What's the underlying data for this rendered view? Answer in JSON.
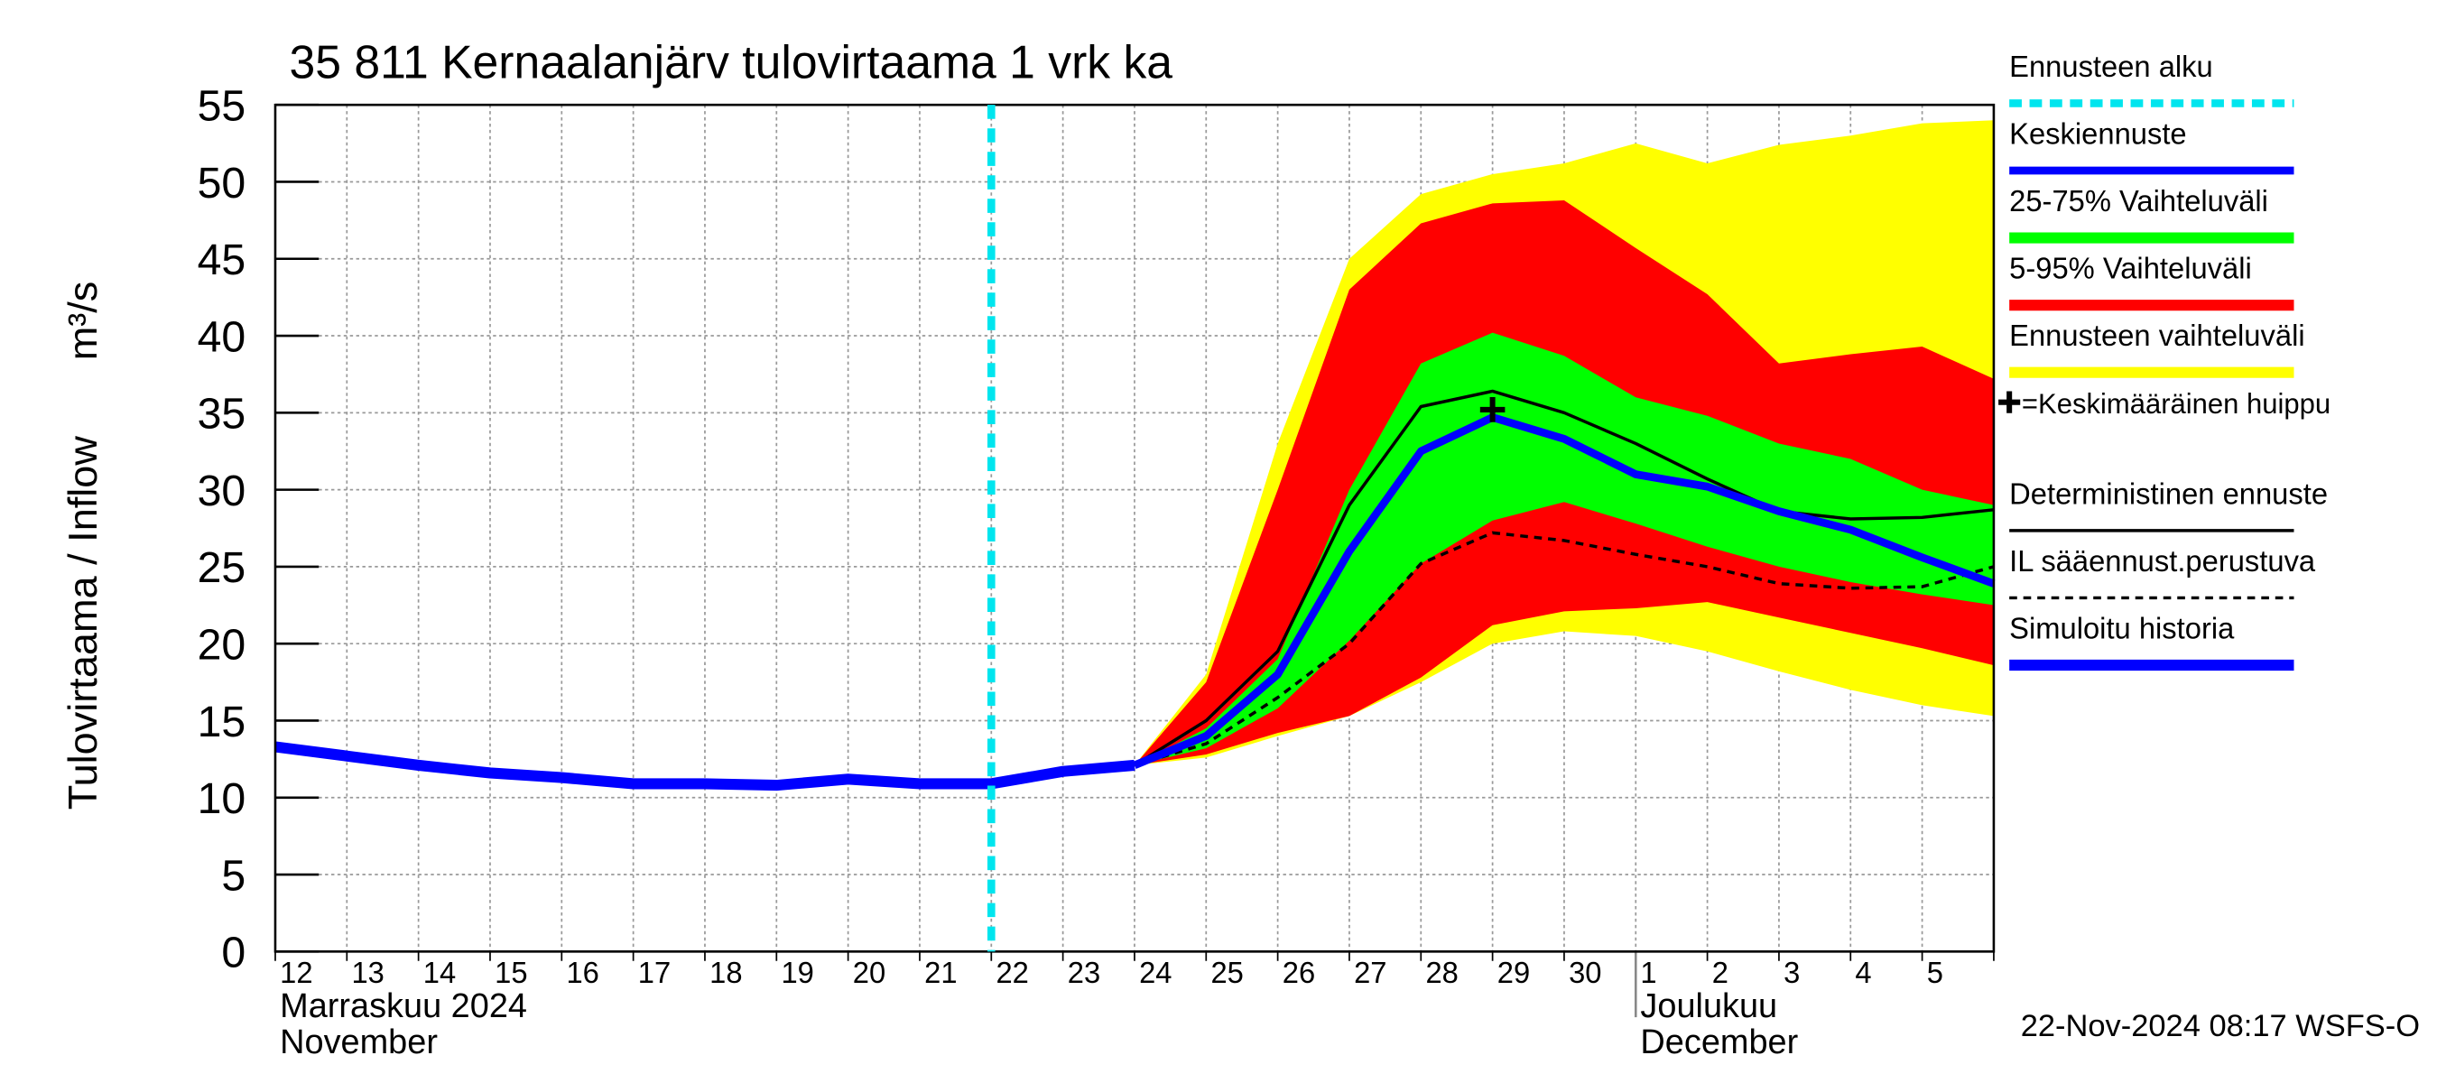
{
  "chart_data": {
    "type": "line",
    "title": "35 811 Kernaalanjärv tulovirtaama 1 vrk ka",
    "y_label": "Tulovirtaama / Inflow",
    "y_unit": "m³/s",
    "categories": [
      "12",
      "13",
      "14",
      "15",
      "16",
      "17",
      "18",
      "19",
      "20",
      "21",
      "22",
      "23",
      "24",
      "25",
      "26",
      "27",
      "28",
      "29",
      "30",
      "1",
      "2",
      "3",
      "4",
      "5",
      null
    ],
    "month_labels": [
      {
        "category": "12",
        "lines": [
          "Marraskuu 2024",
          "November"
        ]
      },
      {
        "category": "1",
        "lines": [
          "Joulukuu",
          "December"
        ]
      }
    ],
    "ylim": [
      0,
      55
    ],
    "yticks": [
      0,
      5,
      10,
      15,
      20,
      25,
      30,
      35,
      40,
      45,
      50,
      55
    ],
    "grid": true,
    "forecast_start": {
      "name": "Ennusteen alku",
      "category": "22",
      "color": "#00e5ee"
    },
    "series": [
      {
        "name": "Ennusteen vaihteluväli",
        "kind": "band",
        "color": "#ffff00",
        "values": [
          null,
          null,
          null,
          null,
          null,
          null,
          null,
          null,
          null,
          null,
          null,
          null,
          12.1,
          18,
          33,
          45,
          49.2,
          50.5,
          51.2,
          52.5,
          51.2,
          52.4,
          53,
          53.8,
          54
        ],
        "lower": [
          null,
          null,
          null,
          null,
          null,
          null,
          null,
          null,
          null,
          null,
          null,
          null,
          12.1,
          12.6,
          14,
          15.3,
          17.5,
          20,
          20.8,
          20.5,
          19.5,
          18.2,
          17,
          16,
          15.3
        ]
      },
      {
        "name": "5-95% Vaihteluväli",
        "kind": "band",
        "color": "#ff0000",
        "values": [
          null,
          null,
          null,
          null,
          null,
          null,
          null,
          null,
          null,
          null,
          null,
          null,
          12.1,
          17.5,
          30,
          43,
          47.3,
          48.6,
          48.8,
          45.7,
          42.7,
          38.2,
          38.8,
          39.3,
          37.2
        ],
        "lower": [
          null,
          null,
          null,
          null,
          null,
          null,
          null,
          null,
          null,
          null,
          null,
          null,
          12.1,
          12.8,
          14.2,
          15.3,
          17.8,
          21.2,
          22.1,
          22.3,
          22.7,
          21.7,
          20.7,
          19.7,
          18.6
        ]
      },
      {
        "name": "25-75% Vaihteluväli",
        "kind": "band",
        "color": "#00ff00",
        "values": [
          null,
          null,
          null,
          null,
          null,
          null,
          null,
          null,
          null,
          null,
          null,
          null,
          12.1,
          14.5,
          19,
          30,
          38.2,
          40.2,
          38.7,
          36,
          34.8,
          33,
          32,
          30,
          29
        ],
        "lower": [
          null,
          null,
          null,
          null,
          null,
          null,
          null,
          null,
          null,
          null,
          null,
          null,
          12.1,
          13.2,
          15.8,
          20.2,
          25.2,
          28,
          29.2,
          27.8,
          26.3,
          25,
          24,
          23.2,
          22.5
        ]
      },
      {
        "name": "IL sääennust.perustuva",
        "kind": "line",
        "color": "#000000",
        "dash": true,
        "width": 2,
        "values": [
          null,
          null,
          null,
          null,
          null,
          null,
          null,
          null,
          null,
          null,
          null,
          null,
          12.1,
          13.5,
          16.5,
          20,
          25.2,
          27.2,
          26.7,
          25.8,
          25,
          23.9,
          23.6,
          23.7,
          25
        ]
      },
      {
        "name": "Deterministinen ennuste",
        "kind": "line",
        "color": "#000000",
        "width": 2,
        "values": [
          null,
          null,
          null,
          null,
          null,
          null,
          null,
          null,
          null,
          null,
          null,
          null,
          12.1,
          15,
          19.5,
          29,
          35.4,
          36.4,
          35,
          33,
          30.7,
          28.6,
          28.1,
          28.2,
          28.7
        ]
      },
      {
        "name": "Keskiennuste",
        "kind": "line",
        "color": "#0000ff",
        "width": 5,
        "values": [
          null,
          null,
          null,
          null,
          null,
          null,
          null,
          null,
          null,
          null,
          null,
          null,
          12.1,
          14,
          18,
          26,
          32.5,
          34.7,
          33.3,
          31,
          30.2,
          28.6,
          27.4,
          25.6,
          23.9
        ]
      },
      {
        "name": "Simuloitu historia",
        "kind": "line",
        "color": "#0000ff",
        "width": 7,
        "values": [
          13.3,
          12.7,
          12.1,
          11.6,
          11.3,
          10.9,
          10.9,
          10.8,
          11.2,
          10.9,
          10.9,
          11.7,
          12.1,
          null,
          null,
          null,
          null,
          null,
          null,
          null,
          null,
          null,
          null,
          null,
          null
        ]
      }
    ],
    "peak": {
      "name": "=Keskimääräinen huippu",
      "category": "29",
      "value": 35.2
    },
    "timestamp": "22-Nov-2024 08:17 WSFS-O"
  }
}
